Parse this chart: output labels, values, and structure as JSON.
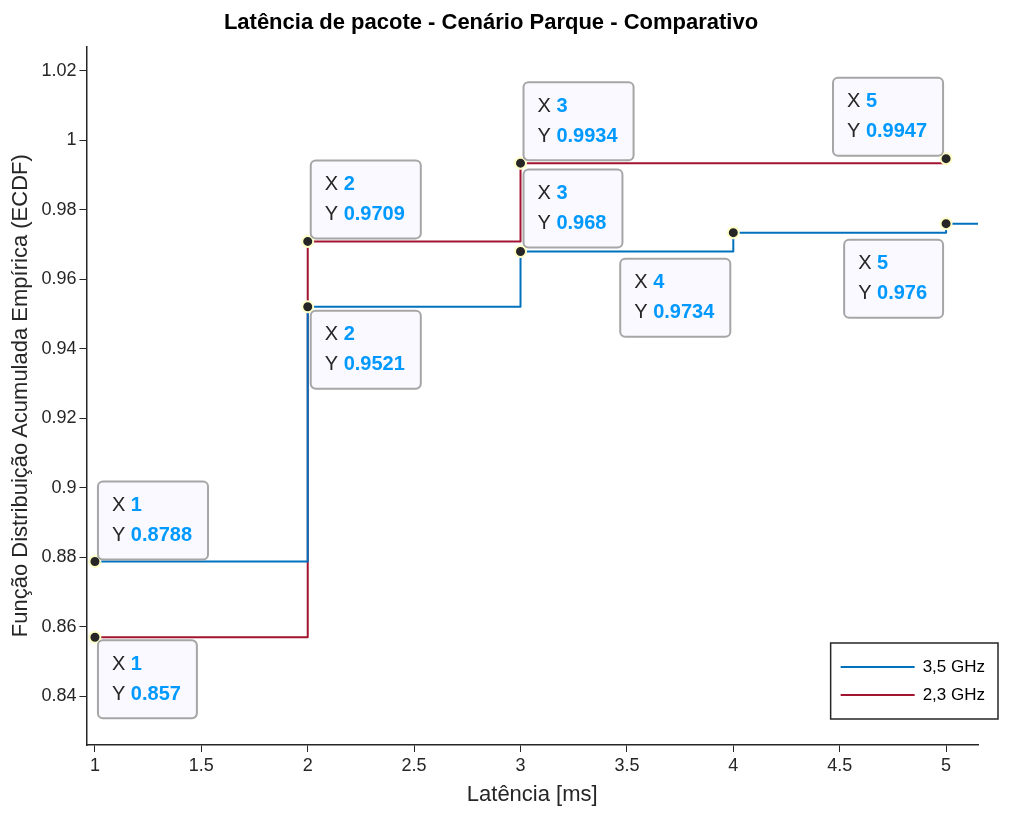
{
  "chart_data": {
    "type": "step",
    "title": "Latência de pacote - Cenário Parque - Comparativo",
    "xlabel": "Latência [ms]",
    "ylabel": "Função Distribuição Acumulada Empírica (ECDF)",
    "series": [
      {
        "name": "3,5 GHz",
        "color": "#0072bd",
        "x": [
          1,
          2,
          3,
          4,
          5,
          5.15
        ],
        "values": [
          0.8788,
          0.9521,
          0.968,
          0.9734,
          0.976,
          0.976
        ]
      },
      {
        "name": "2,3 GHz",
        "color": "#a2142f",
        "x": [
          1,
          2,
          3,
          5
        ],
        "values": [
          0.857,
          0.9709,
          0.9934,
          0.9947
        ]
      }
    ],
    "xlim": [
      0.96,
      5.15
    ],
    "xticks": [
      1,
      1.5,
      2,
      2.5,
      3,
      3.5,
      4,
      4.5,
      5
    ],
    "ylim": [
      0.826,
      1.027
    ],
    "yticks": [
      0.84,
      0.86,
      0.88,
      0.9,
      0.92,
      0.94,
      0.96,
      0.98,
      1,
      1.02
    ],
    "grid": false,
    "legend": "bottom right",
    "marker": "circle",
    "line_style": "solid",
    "annotations": [
      {
        "text": "X 1\nY 0.8788",
        "x": 1,
        "y": 0.8788
      },
      {
        "text": "X 1\nY 0.857",
        "x": 1,
        "y": 0.857
      },
      {
        "text": "X 2\nY 0.9709",
        "x": 2,
        "y": 0.9709
      },
      {
        "text": "X 2\nY 0.9521",
        "x": 2,
        "y": 0.9521
      },
      {
        "text": "X 3\nY 0.9934",
        "x": 3,
        "y": 0.9934
      },
      {
        "text": "X 3\nY 0.968",
        "x": 3,
        "y": 0.968
      },
      {
        "text": "X 4\nY 0.9734",
        "x": 4,
        "y": 0.9734
      },
      {
        "text": "X 5\nY 0.9947",
        "x": 5,
        "y": 0.9947
      },
      {
        "text": "X 5\nY 0.976",
        "x": 5,
        "y": 0.976
      }
    ]
  }
}
